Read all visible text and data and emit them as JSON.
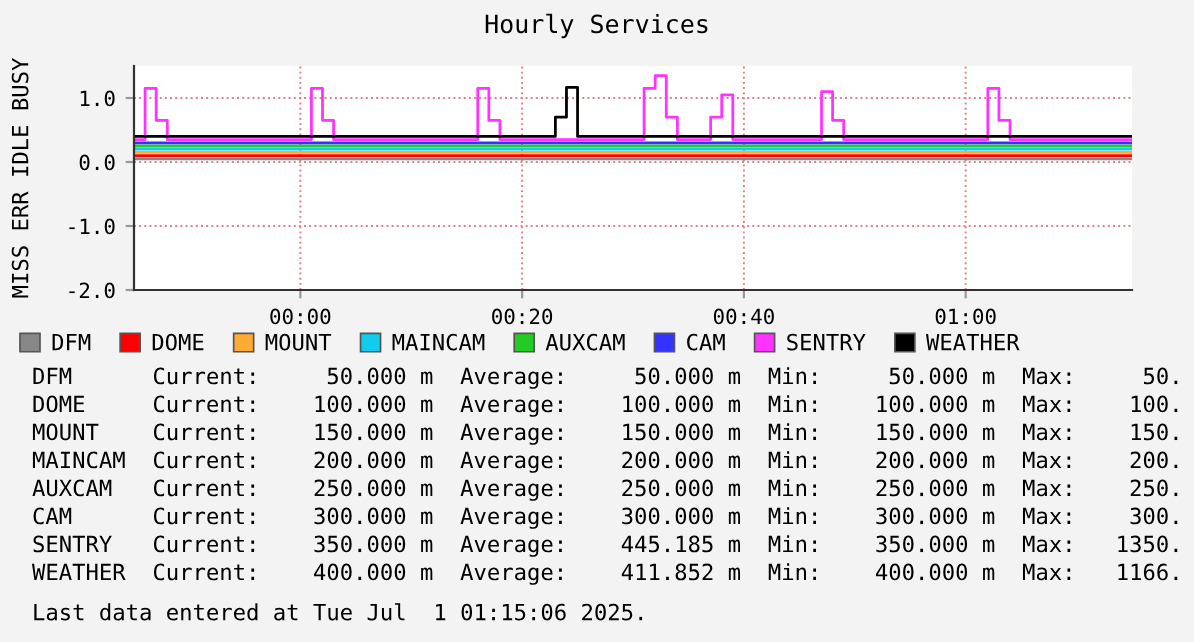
{
  "chart_data": {
    "type": "step",
    "title": "Hourly Services",
    "ylabel": "MISS ERR IDLE BUSY",
    "xlim": [
      "2025-06-30T23:45",
      "2025-07-01T01:15"
    ],
    "ylim": [
      -2.0,
      1.5
    ],
    "xticks": [
      {
        "value": "2025-07-01T00:00",
        "label": "00:00"
      },
      {
        "value": "2025-07-01T00:20",
        "label": "00:20"
      },
      {
        "value": "2025-07-01T00:40",
        "label": "00:40"
      },
      {
        "value": "2025-07-01T01:00",
        "label": "01:00"
      }
    ],
    "yticks": [
      {
        "value": -2.0,
        "label": "-2.0"
      },
      {
        "value": -1.0,
        "label": "-1.0"
      },
      {
        "value": 0.0,
        "label": "0.0"
      },
      {
        "value": 1.0,
        "label": "1.0"
      }
    ],
    "grid": true,
    "legend": "bottom",
    "series": [
      {
        "name": "DFM",
        "color": "#888888",
        "x": [
          "2025-06-30T23:45",
          "2025-07-01T01:15"
        ],
        "values": [
          0.05,
          0.05
        ]
      },
      {
        "name": "DOME",
        "color": "#ff0000",
        "x": [
          "2025-06-30T23:45",
          "2025-07-01T01:15"
        ],
        "values": [
          0.1,
          0.1
        ]
      },
      {
        "name": "MOUNT",
        "color": "#ffaa33",
        "x": [
          "2025-06-30T23:45",
          "2025-07-01T01:15"
        ],
        "values": [
          0.15,
          0.15
        ]
      },
      {
        "name": "MAINCAM",
        "color": "#11ccee",
        "x": [
          "2025-06-30T23:45",
          "2025-07-01T01:15"
        ],
        "values": [
          0.2,
          0.2
        ]
      },
      {
        "name": "AUXCAM",
        "color": "#22cc22",
        "x": [
          "2025-06-30T23:45",
          "2025-07-01T01:15"
        ],
        "values": [
          0.25,
          0.25
        ]
      },
      {
        "name": "CAM",
        "color": "#3333ff",
        "x": [
          "2025-06-30T23:45",
          "2025-07-01T01:15"
        ],
        "values": [
          0.3,
          0.3
        ]
      },
      {
        "name": "SENTRY",
        "color": "#ff33ff",
        "x": [
          "2025-06-30T23:45",
          "2025-06-30T23:46",
          "2025-06-30T23:47",
          "2025-06-30T23:48",
          "2025-07-01T00:01",
          "2025-07-01T00:02",
          "2025-07-01T00:03",
          "2025-07-01T00:16",
          "2025-07-01T00:17",
          "2025-07-01T00:18",
          "2025-07-01T00:31",
          "2025-07-01T00:32",
          "2025-07-01T00:33",
          "2025-07-01T00:34",
          "2025-07-01T00:37",
          "2025-07-01T00:38",
          "2025-07-01T00:39",
          "2025-07-01T00:47",
          "2025-07-01T00:48",
          "2025-07-01T00:49",
          "2025-07-01T01:02",
          "2025-07-01T01:03",
          "2025-07-01T01:04",
          "2025-07-01T01:15"
        ],
        "values": [
          0.35,
          1.15,
          0.65,
          0.35,
          1.15,
          0.65,
          0.35,
          1.15,
          0.65,
          0.35,
          1.15,
          1.35,
          0.7,
          0.35,
          0.7,
          1.05,
          0.35,
          1.1,
          0.65,
          0.35,
          1.15,
          0.65,
          0.35,
          0.35
        ]
      },
      {
        "name": "WEATHER",
        "color": "#000000",
        "x": [
          "2025-06-30T23:45",
          "2025-07-01T00:23",
          "2025-07-01T00:24",
          "2025-07-01T00:25",
          "2025-07-01T01:15"
        ],
        "values": [
          0.4,
          0.7,
          1.166,
          0.4,
          0.4
        ]
      }
    ],
    "annotations": [
      "DFM      Current:     50.000 m  Average:     50.000 m  Min:     50.000 m  Max:     50.",
      "DOME     Current:    100.000 m  Average:    100.000 m  Min:    100.000 m  Max:    100.",
      "MOUNT    Current:    150.000 m  Average:    150.000 m  Min:    150.000 m  Max:    150.",
      "MAINCAM  Current:    200.000 m  Average:    200.000 m  Min:    200.000 m  Max:    200.",
      "AUXCAM   Current:    250.000 m  Average:    250.000 m  Min:    250.000 m  Max:    250.",
      "CAM      Current:    300.000 m  Average:    300.000 m  Min:    300.000 m  Max:    300.",
      "SENTRY   Current:    350.000 m  Average:    445.185 m  Min:    350.000 m  Max:   1350.",
      "WEATHER  Current:    400.000 m  Average:    411.852 m  Min:    400.000 m  Max:   1166.",
      "Last data entered at Tue Jul  1 01:15:06 2025."
    ]
  }
}
